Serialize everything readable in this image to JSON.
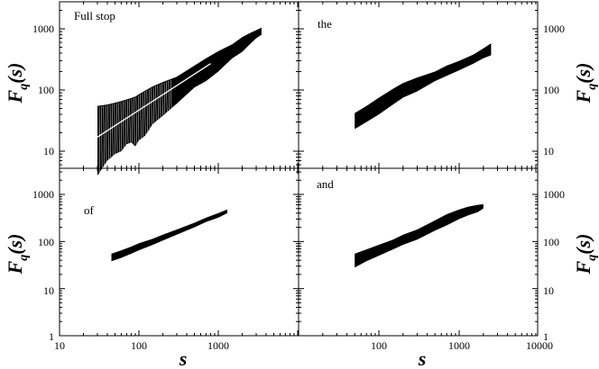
{
  "chart_data": [
    {
      "type": "area",
      "panel": "top-left",
      "label": "Full stop",
      "ylabel": "F_q(s)",
      "x_scale": "log",
      "y_scale": "log",
      "xlim": [
        10,
        10000
      ],
      "ylim": [
        1,
        3000
      ],
      "yticks": [
        "10",
        "100",
        "1000"
      ],
      "band": {
        "x": [
          30,
          40,
          50,
          60,
          70,
          80,
          90,
          100,
          120,
          150,
          200,
          300,
          500,
          700,
          1000,
          1500,
          2000,
          2500,
          3000,
          3500
        ],
        "lower": [
          4,
          7,
          9,
          10,
          13,
          14,
          12,
          15,
          18,
          28,
          38,
          60,
          110,
          140,
          200,
          330,
          420,
          560,
          700,
          800
        ],
        "upper": [
          55,
          58,
          62,
          66,
          70,
          74,
          78,
          85,
          98,
          115,
          135,
          165,
          250,
          330,
          430,
          560,
          730,
          850,
          950,
          1050
        ]
      },
      "fit_line": {
        "x": [
          30,
          800
        ],
        "y": [
          17,
          270
        ]
      }
    },
    {
      "type": "area",
      "panel": "top-right",
      "label": "the",
      "ylabel": "F_q(s)",
      "x_scale": "log",
      "y_scale": "log",
      "xlim": [
        10,
        10000
      ],
      "ylim": [
        1,
        3000
      ],
      "yticks": [
        "10",
        "100",
        "1000"
      ],
      "band": {
        "x": [
          50,
          70,
          100,
          150,
          200,
          300,
          500,
          700,
          1000,
          1500,
          2000,
          2500
        ],
        "lower": [
          23,
          30,
          40,
          58,
          75,
          95,
          140,
          170,
          210,
          270,
          330,
          370
        ],
        "upper": [
          42,
          55,
          75,
          105,
          130,
          160,
          200,
          250,
          300,
          380,
          480,
          580
        ]
      }
    },
    {
      "type": "area",
      "panel": "bottom-left",
      "label": "of",
      "ylabel": "F_q(s)",
      "x_scale": "log",
      "y_scale": "log",
      "xlim": [
        10,
        10000
      ],
      "ylim": [
        1,
        3000
      ],
      "xticks": [
        "10",
        "100",
        "1000"
      ],
      "yticks": [
        "1",
        "10",
        "100",
        "1000"
      ],
      "xlabel": "s",
      "band": {
        "x": [
          45,
          60,
          80,
          100,
          150,
          200,
          300,
          500,
          700,
          1000,
          1300
        ],
        "lower": [
          38,
          45,
          55,
          65,
          85,
          105,
          140,
          200,
          260,
          320,
          400
        ],
        "upper": [
          55,
          65,
          78,
          92,
          115,
          140,
          180,
          250,
          320,
          400,
          480
        ]
      }
    },
    {
      "type": "area",
      "panel": "bottom-right",
      "label": "and",
      "ylabel": "F_q(s)",
      "x_scale": "log",
      "y_scale": "log",
      "xlim": [
        10,
        10000
      ],
      "ylim": [
        1,
        3000
      ],
      "xticks": [
        "100",
        "1000",
        "10000"
      ],
      "yticks": [
        "1",
        "10",
        "100",
        "1000"
      ],
      "xlabel": "s",
      "band": {
        "x": [
          50,
          70,
          100,
          150,
          200,
          300,
          500,
          700,
          1000,
          1300,
          1700,
          2000
        ],
        "lower": [
          28,
          38,
          50,
          68,
          85,
          110,
          170,
          220,
          300,
          360,
          420,
          500
        ],
        "upper": [
          55,
          68,
          85,
          110,
          140,
          180,
          280,
          380,
          480,
          550,
          600,
          620
        ]
      }
    }
  ]
}
